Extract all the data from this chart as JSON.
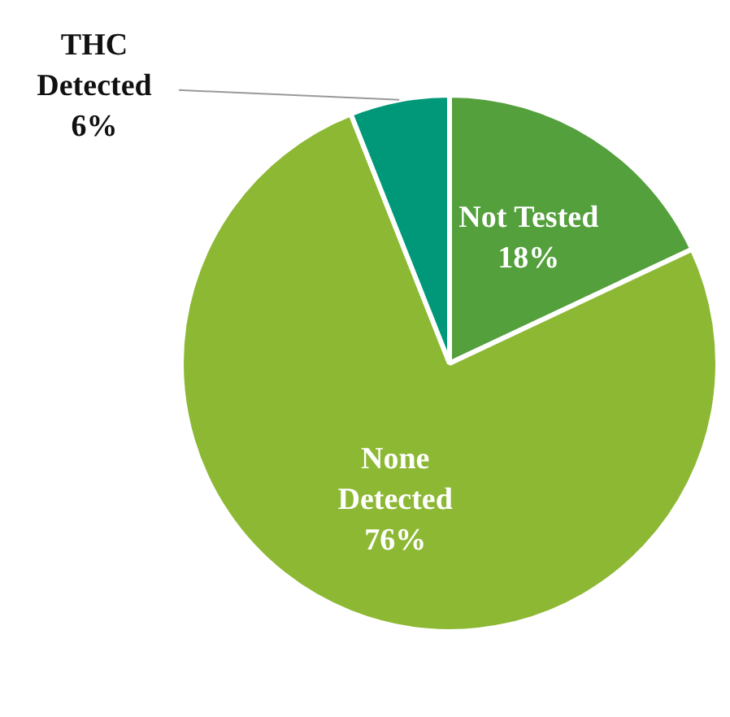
{
  "chart_data": {
    "type": "pie",
    "categories": [
      "Not Tested",
      "None Detected",
      "THC Detected"
    ],
    "values": [
      18,
      76,
      6
    ],
    "colors": [
      "#53a03c",
      "#8db834",
      "#009878"
    ],
    "value_labels": [
      "18%",
      "76%",
      "6%"
    ],
    "legend": false
  }
}
